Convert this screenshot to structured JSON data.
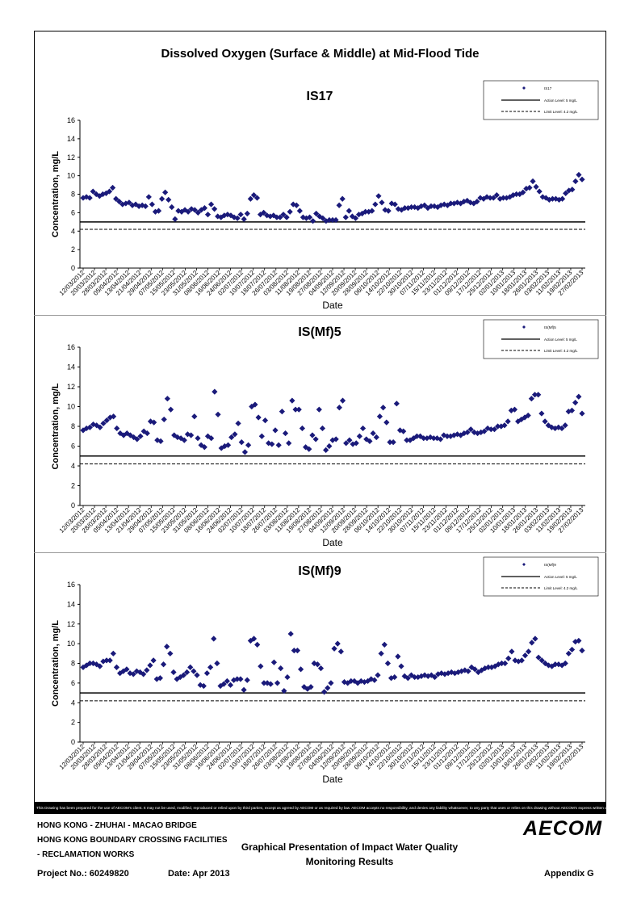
{
  "main_title": "Dissolved Oxygen (Surface & Middle) at Mid-Flood Tide",
  "disclaimer": "This Drawing has been prepared for the use of AECOM's client. It may not be used, modified, reproduced or relied upon by third parties, except as agreed by AECOM or as required by law. AECOM accepts no responsibility, and denies any liability whatsoever, to any party that uses or relies on this drawing without AECOM's express written consent.",
  "footer": {
    "line1": "HONG KONG - ZHUHAI - MACAO BRIDGE",
    "line2": "HONG KONG BOUNDARY CROSSING FACILITIES",
    "line3": "- RECLAMATION WORKS",
    "center1": "Graphical Presentation of Impact Water Quality",
    "center2": "Monitoring Results",
    "logo": "AECOM",
    "project": "Project No.: 60249820",
    "date": "Date: Apr 2013",
    "appendix": "Appendix G"
  },
  "colors": {
    "marker": "#1a1a7a"
  },
  "chart_data": [
    {
      "type": "scatter",
      "title": "IS17",
      "xlabel": "Date",
      "ylabel": "Concentration, mg/L",
      "ylim": [
        0,
        16
      ],
      "yticks": [
        0,
        2,
        4,
        6,
        8,
        10,
        12,
        14,
        16
      ],
      "xtick_labels": [
        "12/03/2012",
        "20/03/2012",
        "28/03/2012",
        "05/04/2012",
        "13/04/2012",
        "21/04/2012",
        "29/04/2012",
        "07/05/2012",
        "15/05/2012",
        "23/05/2012",
        "31/05/2012",
        "08/06/2012",
        "16/06/2012",
        "24/06/2012",
        "02/07/2012",
        "10/07/2012",
        "18/07/2012",
        "26/07/2012",
        "03/08/2012",
        "11/08/2012",
        "19/08/2012",
        "27/08/2012",
        "04/09/2012",
        "12/09/2012",
        "20/09/2012",
        "28/09/2012",
        "06/10/2012",
        "14/10/2012",
        "22/10/2012",
        "30/10/2012",
        "07/11/2012",
        "15/11/2012",
        "23/11/2012",
        "01/12/2012",
        "09/12/2012",
        "17/12/2012",
        "25/12/2012",
        "02/01/2013",
        "10/01/2013",
        "18/01/2013",
        "26/01/2013",
        "03/02/2013",
        "11/02/2013",
        "19/02/2013",
        "27/02/2013"
      ],
      "legend": {
        "placement": "top-right",
        "entries": [
          "IS17",
          "Action Level: 5 mg/L",
          "Limit Level: 4.2 mg/L"
        ]
      },
      "action_level": 5,
      "limit_level": 4.2,
      "series": [
        {
          "name": "IS17",
          "values": [
            7.6,
            7.7,
            7.6,
            8.3,
            8.0,
            7.8,
            8.0,
            8.1,
            8.3,
            8.7,
            7.5,
            7.2,
            6.9,
            7.0,
            7.1,
            6.8,
            6.9,
            6.7,
            6.8,
            6.7,
            7.7,
            6.9,
            6.1,
            6.2,
            7.5,
            8.2,
            7.4,
            6.6,
            5.3,
            6.2,
            6.1,
            6.3,
            6.1,
            6.4,
            6.3,
            6.0,
            6.3,
            6.5,
            5.8,
            6.9,
            6.4,
            5.6,
            5.5,
            5.7,
            5.8,
            5.7,
            5.5,
            5.4,
            5.8,
            5.3,
            5.9,
            7.5,
            7.9,
            7.6,
            5.8,
            6.0,
            5.7,
            5.6,
            5.7,
            5.5,
            5.5,
            5.8,
            5.5,
            6.1,
            6.9,
            6.8,
            6.2,
            5.5,
            5.4,
            5.5,
            5.1,
            5.9,
            5.6,
            5.4,
            5.1,
            5.2,
            5.2,
            5.2,
            6.8,
            7.5,
            5.5,
            6.2,
            5.6,
            5.4,
            5.8,
            5.9,
            6.1,
            6.1,
            6.2,
            6.9,
            7.8,
            7.1,
            6.3,
            6.2,
            7.0,
            6.9,
            6.4,
            6.3,
            6.5,
            6.5,
            6.6,
            6.6,
            6.5,
            6.7,
            6.8,
            6.5,
            6.7,
            6.7,
            6.6,
            6.8,
            6.9,
            6.8,
            7.0,
            7.0,
            7.1,
            7.0,
            7.2,
            7.3,
            7.1,
            7.0,
            7.2,
            7.6,
            7.5,
            7.7,
            7.6,
            7.6,
            7.9,
            7.5,
            7.6,
            7.6,
            7.7,
            7.9,
            8.0,
            8.0,
            8.2,
            8.6,
            8.7,
            9.4,
            8.8,
            8.3,
            7.7,
            7.6,
            7.4,
            7.5,
            7.5,
            7.4,
            7.5,
            8.1,
            8.4,
            8.5,
            9.4,
            10.1,
            9.6
          ]
        }
      ]
    },
    {
      "type": "scatter",
      "title": "IS(Mf)5",
      "xlabel": "Date",
      "ylabel": "Concentration, mg/L",
      "ylim": [
        0,
        16
      ],
      "yticks": [
        0,
        2,
        4,
        6,
        8,
        10,
        12,
        14,
        16
      ],
      "xtick_labels": [
        "12/03/2012",
        "20/03/2012",
        "28/03/2012",
        "05/04/2012",
        "13/04/2012",
        "21/04/2012",
        "29/04/2012",
        "07/05/2012",
        "15/05/2012",
        "23/05/2012",
        "31/05/2012",
        "08/06/2012",
        "16/06/2012",
        "24/06/2012",
        "02/07/2012",
        "10/07/2012",
        "18/07/2012",
        "26/07/2012",
        "03/08/2012",
        "11/08/2012",
        "19/08/2012",
        "27/08/2012",
        "04/09/2012",
        "12/09/2012",
        "20/09/2012",
        "28/09/2012",
        "06/10/2012",
        "14/10/2012",
        "22/10/2012",
        "30/10/2012",
        "07/11/2012",
        "15/11/2012",
        "23/11/2012",
        "01/12/2012",
        "09/12/2012",
        "17/12/2012",
        "25/12/2012",
        "02/01/2013",
        "10/01/2013",
        "18/01/2013",
        "26/01/2013",
        "03/02/2013",
        "11/02/2013",
        "19/02/2013",
        "27/02/2013"
      ],
      "legend": {
        "placement": "top-right",
        "entries": [
          "IS(Mf)5",
          "Action Level: 5 mg/L",
          "Limit Level: 4.2 mg/L"
        ]
      },
      "action_level": 5,
      "limit_level": 4.2,
      "series": [
        {
          "name": "IS(Mf)5",
          "values": [
            7.6,
            7.8,
            7.9,
            8.2,
            8.1,
            7.9,
            8.3,
            8.6,
            8.9,
            9.0,
            7.8,
            7.3,
            7.1,
            7.3,
            7.1,
            6.9,
            6.7,
            7.0,
            7.5,
            7.3,
            8.5,
            8.4,
            6.6,
            6.5,
            8.7,
            10.8,
            9.7,
            7.1,
            6.9,
            6.8,
            6.6,
            7.2,
            7.1,
            9.0,
            6.8,
            6.1,
            5.9,
            7.0,
            6.8,
            11.5,
            9.2,
            5.8,
            6.0,
            6.1,
            6.9,
            7.2,
            8.3,
            6.4,
            5.4,
            6.1,
            10.0,
            10.2,
            8.9,
            7.0,
            8.6,
            6.3,
            6.2,
            7.6,
            6.1,
            9.5,
            7.3,
            6.3,
            10.6,
            9.7,
            9.7,
            7.8,
            5.9,
            5.7,
            7.1,
            6.7,
            9.7,
            7.8,
            5.6,
            6.0,
            6.6,
            6.7,
            9.9,
            10.6,
            6.3,
            6.6,
            6.2,
            6.3,
            7.0,
            7.8,
            6.7,
            6.5,
            7.3,
            6.9,
            9.0,
            9.9,
            8.4,
            6.4,
            6.4,
            10.3,
            7.6,
            7.5,
            6.6,
            6.6,
            6.8,
            7.0,
            7.0,
            6.8,
            6.8,
            6.9,
            6.8,
            6.8,
            6.7,
            7.1,
            7.0,
            7.0,
            7.1,
            7.2,
            7.1,
            7.3,
            7.4,
            7.7,
            7.4,
            7.3,
            7.4,
            7.5,
            7.8,
            7.7,
            7.7,
            8.0,
            8.0,
            8.1,
            8.5,
            9.6,
            9.7,
            8.5,
            8.7,
            8.9,
            9.1,
            10.8,
            11.2,
            11.2,
            9.3,
            8.5,
            8.1,
            7.9,
            7.8,
            7.9,
            7.8,
            8.1,
            9.5,
            9.6,
            10.4,
            11.0,
            9.3
          ]
        }
      ]
    },
    {
      "type": "scatter",
      "title": "IS(Mf)9",
      "xlabel": "Date",
      "ylabel": "Concentration, mg/L",
      "ylim": [
        0,
        16
      ],
      "yticks": [
        0,
        2,
        4,
        6,
        8,
        10,
        12,
        14,
        16
      ],
      "xtick_labels": [
        "12/03/2012",
        "20/03/2012",
        "28/03/2012",
        "05/04/2012",
        "13/04/2012",
        "21/04/2012",
        "29/04/2012",
        "07/05/2012",
        "15/05/2012",
        "23/05/2012",
        "31/05/2012",
        "08/06/2012",
        "16/06/2012",
        "24/06/2012",
        "02/07/2012",
        "10/07/2012",
        "18/07/2012",
        "26/07/2012",
        "03/08/2012",
        "11/08/2012",
        "19/08/2012",
        "27/08/2012",
        "04/09/2012",
        "12/09/2012",
        "20/09/2012",
        "28/09/2012",
        "06/10/2012",
        "14/10/2012",
        "22/10/2012",
        "30/10/2012",
        "07/11/2012",
        "15/11/2012",
        "23/11/2012",
        "01/12/2012",
        "09/12/2012",
        "17/12/2012",
        "25/12/2012",
        "02/01/2013",
        "10/01/2013",
        "18/01/2013",
        "26/01/2013",
        "03/02/2013",
        "11/02/2013",
        "19/02/2013",
        "27/02/2013"
      ],
      "legend": {
        "placement": "top-right",
        "entries": [
          "IS(Mf)9",
          "Action Level: 5 mg/L",
          "Limit Level: 4.2 mg/L"
        ]
      },
      "action_level": 5,
      "limit_level": 4.2,
      "series": [
        {
          "name": "IS(Mf)9",
          "values": [
            7.6,
            7.8,
            8.0,
            8.0,
            7.9,
            7.7,
            8.2,
            8.3,
            8.3,
            9.0,
            7.6,
            7.0,
            7.2,
            7.4,
            7.0,
            6.9,
            7.2,
            7.1,
            6.9,
            7.3,
            7.8,
            8.3,
            6.4,
            6.5,
            7.9,
            9.7,
            9.0,
            7.1,
            6.4,
            6.6,
            6.8,
            7.1,
            7.6,
            7.2,
            6.8,
            5.8,
            5.7,
            7.0,
            7.6,
            10.5,
            8.0,
            5.7,
            5.9,
            6.2,
            5.8,
            6.3,
            6.4,
            6.4,
            5.3,
            6.3,
            10.3,
            10.5,
            9.9,
            7.7,
            6.0,
            6.0,
            5.9,
            8.1,
            6.0,
            7.5,
            5.2,
            6.6,
            11.0,
            9.3,
            9.3,
            7.4,
            5.6,
            5.4,
            5.6,
            8.0,
            7.9,
            7.5,
            5.1,
            5.5,
            6.0,
            9.5,
            10.0,
            9.2,
            6.1,
            6.0,
            6.2,
            6.2,
            6.0,
            6.2,
            6.1,
            6.2,
            6.4,
            6.3,
            6.8,
            9.0,
            9.9,
            8.0,
            6.5,
            6.6,
            8.7,
            7.7,
            6.7,
            6.5,
            6.8,
            6.6,
            6.6,
            6.7,
            6.8,
            6.7,
            6.8,
            6.6,
            6.9,
            7.0,
            6.9,
            7.0,
            7.1,
            7.0,
            7.1,
            7.2,
            7.3,
            7.2,
            7.6,
            7.4,
            7.1,
            7.3,
            7.5,
            7.6,
            7.6,
            7.7,
            7.9,
            8.0,
            8.0,
            8.5,
            9.2,
            8.3,
            8.2,
            8.3,
            8.8,
            9.2,
            10.1,
            10.5,
            8.6,
            8.3,
            8.0,
            7.8,
            7.7,
            7.9,
            7.9,
            7.8,
            8.0,
            9.0,
            9.4,
            10.2,
            10.3,
            9.3
          ]
        }
      ]
    }
  ]
}
